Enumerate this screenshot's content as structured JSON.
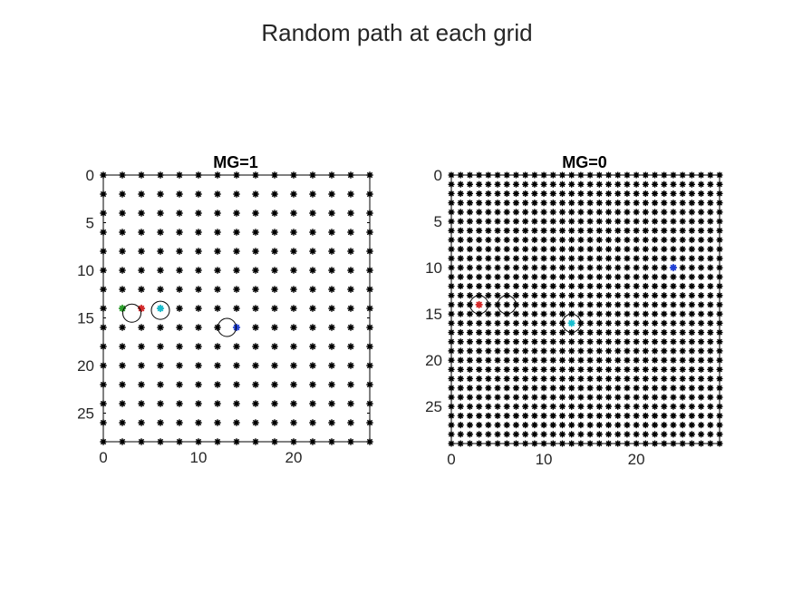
{
  "figure": {
    "title": "Random path at each grid"
  },
  "chart_data": [
    {
      "type": "scatter",
      "title": "MG=1",
      "xlabel": "",
      "ylabel": "",
      "xlim": [
        0,
        28
      ],
      "ylim": [
        0,
        28
      ],
      "y_reversed": true,
      "xticks": [
        0,
        10,
        20
      ],
      "yticks": [
        0,
        5,
        10,
        15,
        20,
        25
      ],
      "grid": false,
      "series": [
        {
          "marker": "asterisk",
          "color": "#000000",
          "grid_range": [
            0,
            28
          ],
          "grid_step": 2
        },
        {
          "marker": "asterisk",
          "color": "#2ca02c",
          "points": [
            [
              2,
              14
            ]
          ]
        },
        {
          "marker": "asterisk",
          "color": "#d62728",
          "points": [
            [
              4,
              14
            ]
          ]
        },
        {
          "marker": "asterisk",
          "color": "#17becf",
          "points": [
            [
              6,
              14
            ]
          ]
        },
        {
          "marker": "asterisk",
          "color": "#1f3fd6",
          "points": [
            [
              14,
              16
            ]
          ]
        },
        {
          "marker": "circle",
          "color": "#000000",
          "points": [
            [
              3,
              14.5
            ],
            [
              6,
              14.2
            ],
            [
              13,
              16
            ]
          ]
        }
      ]
    },
    {
      "type": "scatter",
      "title": "MG=0",
      "xlabel": "",
      "ylabel": "",
      "xlim": [
        0,
        29
      ],
      "ylim": [
        0,
        29
      ],
      "y_reversed": true,
      "xticks": [
        0,
        10,
        20
      ],
      "yticks": [
        0,
        5,
        10,
        15,
        20,
        25
      ],
      "grid": false,
      "series": [
        {
          "marker": "asterisk",
          "color": "#000000",
          "grid_range": [
            0,
            29
          ],
          "grid_step": 1
        },
        {
          "marker": "asterisk",
          "color": "#d62728",
          "points": [
            [
              3,
              14
            ]
          ]
        },
        {
          "marker": "asterisk",
          "color": "#17becf",
          "points": [
            [
              13,
              16
            ]
          ]
        },
        {
          "marker": "asterisk",
          "color": "#1f3fd6",
          "points": [
            [
              24,
              10
            ]
          ]
        },
        {
          "marker": "circle",
          "color": "#000000",
          "points": [
            [
              3,
              14
            ],
            [
              6,
              14
            ],
            [
              13,
              16
            ]
          ]
        }
      ]
    }
  ]
}
